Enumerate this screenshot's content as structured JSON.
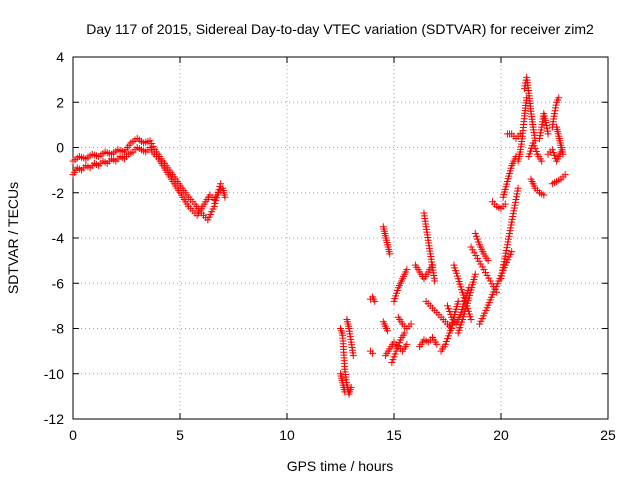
{
  "chart_data": {
    "type": "scatter",
    "title": "Day 117 of 2015, Sidereal Day-to-day VTEC variation (SDTVAR) for receiver zim2",
    "xlabel": "GPS time / hours",
    "ylabel": "SDTVAR / TECUs",
    "xlim": [
      0,
      25
    ],
    "ylim": [
      -12,
      4
    ],
    "xticks": [
      0,
      5,
      10,
      15,
      20,
      25
    ],
    "yticks": [
      -12,
      -10,
      -8,
      -6,
      -4,
      -2,
      0,
      2,
      4
    ],
    "grid": true,
    "marker": "plus",
    "color": "#ff0000",
    "series": [
      {
        "x": [
          0.0,
          0.2,
          0.4,
          0.6,
          0.8,
          1.0,
          1.2,
          1.4,
          1.6,
          1.8,
          2.0,
          2.2,
          2.4,
          2.6,
          2.8,
          3.0,
          3.2,
          3.4,
          3.6,
          3.8,
          4.0,
          4.2,
          4.4,
          4.6,
          4.8,
          5.0,
          5.2,
          5.4,
          5.6,
          5.8,
          6.0,
          6.2,
          6.4,
          6.6,
          6.8,
          7.0,
          7.1
        ],
        "y": [
          -1.2,
          -0.9,
          -1.0,
          -0.8,
          -0.9,
          -0.7,
          -0.8,
          -0.6,
          -0.7,
          -0.5,
          -0.6,
          -0.4,
          -0.5,
          -0.3,
          -0.2,
          0.0,
          -0.1,
          -0.2,
          0.0,
          -0.3,
          -0.5,
          -0.8,
          -1.1,
          -1.4,
          -1.7,
          -2.0,
          -2.3,
          -2.6,
          -2.8,
          -3.0,
          -2.7,
          -2.4,
          -2.1,
          -2.3,
          -2.0,
          -1.8,
          -2.2
        ]
      },
      {
        "x": [
          0.0,
          0.3,
          0.6,
          0.9,
          1.2,
          1.5,
          1.8,
          2.1,
          2.4,
          2.7,
          3.0,
          3.3,
          3.6,
          3.9,
          4.2,
          4.5,
          4.8,
          5.1,
          5.4,
          5.7,
          6.0,
          6.3,
          6.6,
          6.9
        ],
        "y": [
          -0.6,
          -0.4,
          -0.5,
          -0.3,
          -0.4,
          -0.2,
          -0.3,
          -0.1,
          -0.2,
          0.2,
          0.4,
          0.2,
          0.3,
          -0.2,
          -0.6,
          -1.0,
          -1.4,
          -1.8,
          -2.2,
          -2.5,
          -2.9,
          -3.2,
          -2.6,
          -1.6
        ]
      },
      {
        "x": [
          12.5,
          12.6,
          12.7,
          12.8,
          12.9,
          13.0
        ],
        "y": [
          -8.0,
          -8.3,
          -9.8,
          -10.5,
          -10.9,
          -10.6
        ]
      },
      {
        "x": [
          12.8,
          12.9,
          13.0,
          13.1
        ],
        "y": [
          -7.6,
          -8.0,
          -8.6,
          -9.2
        ]
      },
      {
        "x": [
          12.5,
          12.6,
          12.7
        ],
        "y": [
          -10.0,
          -10.4,
          -10.8
        ]
      },
      {
        "x": [
          13.9,
          14.0,
          14.1
        ],
        "y": [
          -6.7,
          -6.6,
          -6.8
        ]
      },
      {
        "x": [
          13.9,
          14.0
        ],
        "y": [
          -9.0,
          -9.1
        ]
      },
      {
        "x": [
          14.5,
          14.6,
          14.7,
          14.8
        ],
        "y": [
          -3.5,
          -3.9,
          -4.3,
          -4.7
        ]
      },
      {
        "x": [
          14.5,
          14.6,
          14.7
        ],
        "y": [
          -7.7,
          -7.9,
          -8.1
        ]
      },
      {
        "x": [
          14.6,
          14.8,
          15.0,
          15.2,
          15.4,
          15.6
        ],
        "y": [
          -9.2,
          -8.9,
          -8.6,
          -8.8,
          -9.0,
          -8.7
        ]
      },
      {
        "x": [
          14.9,
          15.1,
          15.3,
          15.5
        ],
        "y": [
          -9.5,
          -9.0,
          -8.5,
          -8.2
        ]
      },
      {
        "x": [
          15.0,
          15.2,
          15.4,
          15.6
        ],
        "y": [
          -6.8,
          -6.2,
          -5.8,
          -5.4
        ]
      },
      {
        "x": [
          15.2,
          15.4,
          15.6,
          15.8
        ],
        "y": [
          -7.5,
          -7.8,
          -8.0,
          -7.8
        ]
      },
      {
        "x": [
          16.0,
          16.2,
          16.4,
          16.6,
          16.8
        ],
        "y": [
          -5.2,
          -5.5,
          -5.8,
          -5.5,
          -5.2
        ]
      },
      {
        "x": [
          16.2,
          16.4,
          16.6,
          16.8,
          17.0
        ],
        "y": [
          -8.8,
          -8.5,
          -8.6,
          -8.4,
          -8.7
        ]
      },
      {
        "x": [
          16.4,
          16.5,
          16.6,
          16.7,
          16.8,
          16.9
        ],
        "y": [
          -2.9,
          -3.5,
          -4.1,
          -4.7,
          -5.3,
          -5.9
        ]
      },
      {
        "x": [
          16.5,
          16.8,
          17.1,
          17.4,
          17.7
        ],
        "y": [
          -6.8,
          -7.1,
          -7.4,
          -7.7,
          -8.0
        ]
      },
      {
        "x": [
          17.2,
          17.4,
          17.6,
          17.8,
          18.0
        ],
        "y": [
          -9.0,
          -8.7,
          -8.2,
          -7.5,
          -6.8
        ]
      },
      {
        "x": [
          17.5,
          17.7,
          17.9,
          18.1,
          18.3,
          18.5
        ],
        "y": [
          -7.0,
          -7.5,
          -7.8,
          -7.4,
          -6.8,
          -6.2
        ]
      },
      {
        "x": [
          17.8,
          18.0,
          18.2,
          18.4,
          18.6
        ],
        "y": [
          -5.2,
          -5.8,
          -6.4,
          -7.0,
          -7.6
        ]
      },
      {
        "x": [
          18.0,
          18.2,
          18.4,
          18.6,
          18.8
        ],
        "y": [
          -8.2,
          -7.6,
          -7.0,
          -6.3,
          -5.6
        ]
      },
      {
        "x": [
          18.6,
          18.9,
          19.2,
          19.5,
          19.8
        ],
        "y": [
          -4.4,
          -4.9,
          -5.4,
          -5.9,
          -6.4
        ]
      },
      {
        "x": [
          18.8,
          19.0,
          19.2,
          19.4
        ],
        "y": [
          -3.8,
          -4.3,
          -4.7,
          -5.0
        ]
      },
      {
        "x": [
          19.0,
          19.3,
          19.6,
          19.9,
          20.2,
          20.5
        ],
        "y": [
          -7.8,
          -7.2,
          -6.5,
          -5.9,
          -5.2,
          -4.6
        ]
      },
      {
        "x": [
          19.6,
          19.8,
          20.0,
          20.2
        ],
        "y": [
          -2.4,
          -2.6,
          -2.7,
          -2.5
        ]
      },
      {
        "x": [
          20.0,
          20.2,
          20.4,
          20.6,
          20.8
        ],
        "y": [
          -5.8,
          -4.8,
          -3.8,
          -2.8,
          -1.8
        ]
      },
      {
        "x": [
          20.1,
          20.3,
          20.5,
          20.7
        ],
        "y": [
          -2.2,
          -1.5,
          -0.8,
          -0.4
        ]
      },
      {
        "x": [
          20.3,
          20.5,
          20.7,
          20.9
        ],
        "y": [
          0.6,
          0.6,
          0.4,
          0.6
        ]
      },
      {
        "x": [
          20.8,
          20.9,
          21.0,
          21.1,
          21.2
        ],
        "y": [
          -0.6,
          -0.2,
          0.5,
          1.4,
          2.2
        ]
      },
      {
        "x": [
          21.1,
          21.2,
          21.3,
          21.4,
          21.5,
          21.6
        ],
        "y": [
          2.6,
          3.1,
          2.4,
          1.6,
          0.9,
          0.3
        ]
      },
      {
        "x": [
          21.3,
          21.5,
          21.7,
          21.9
        ],
        "y": [
          -0.4,
          0.2,
          -0.3,
          -0.6
        ]
      },
      {
        "x": [
          21.4,
          21.6,
          21.8,
          22.0
        ],
        "y": [
          -1.4,
          -1.8,
          -2.0,
          -2.1
        ]
      },
      {
        "x": [
          21.8,
          21.9,
          22.0,
          22.1,
          22.2
        ],
        "y": [
          0.4,
          0.9,
          1.5,
          1.1,
          0.6
        ]
      },
      {
        "x": [
          22.2,
          22.4,
          22.6,
          22.8
        ],
        "y": [
          -0.3,
          -0.1,
          -0.6,
          -0.2
        ]
      },
      {
        "x": [
          22.4,
          22.5,
          22.6,
          22.7
        ],
        "y": [
          0.9,
          1.5,
          2.0,
          2.2
        ]
      },
      {
        "x": [
          22.4,
          22.6,
          22.8,
          23.0
        ],
        "y": [
          -1.6,
          -1.5,
          -1.4,
          -1.2
        ]
      },
      {
        "x": [
          22.6,
          22.7,
          22.8,
          22.9
        ],
        "y": [
          0.9,
          0.5,
          0.1,
          -0.3
        ]
      }
    ]
  }
}
